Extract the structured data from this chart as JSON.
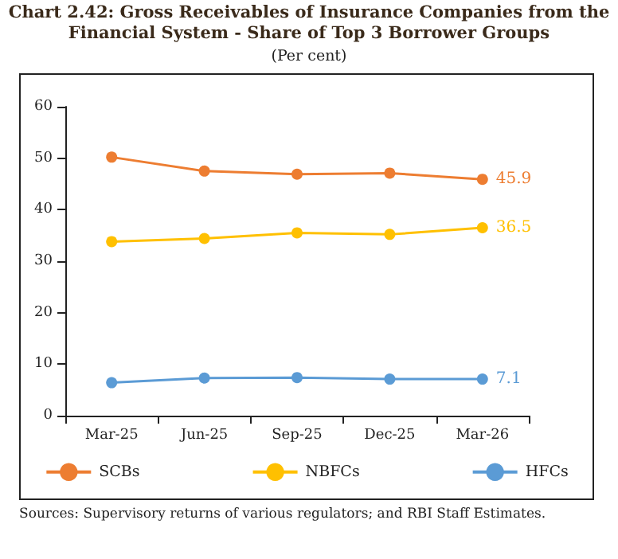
{
  "chart_data": {
    "type": "line",
    "title": "Chart 2.42: Gross Receivables of Insurance Companies from the Financial System - Share of Top 3 Borrower Groups",
    "subtitle": "(Per cent)",
    "categories": [
      "Mar-25",
      "Jun-25",
      "Sep-25",
      "Dec-25",
      "Mar-26"
    ],
    "series": [
      {
        "name": "SCBs",
        "color": "#ed7d31",
        "values": [
          50.2,
          47.5,
          46.9,
          47.1,
          45.9
        ],
        "value_labels": [
          null,
          null,
          null,
          null,
          "45.9"
        ]
      },
      {
        "name": "NBFCs",
        "color": "#ffc000",
        "values": [
          33.8,
          34.4,
          35.5,
          35.2,
          36.5
        ],
        "value_labels": [
          null,
          null,
          null,
          null,
          "36.5"
        ]
      },
      {
        "name": "HFCs",
        "color": "#5b9bd5",
        "values": [
          6.4,
          7.3,
          7.4,
          7.1,
          7.1
        ],
        "value_labels": [
          null,
          null,
          null,
          null,
          "7.1"
        ]
      }
    ],
    "ylim": [
      0,
      60
    ],
    "yticks": [
      0,
      10,
      20,
      30,
      40,
      50,
      60
    ],
    "grid": false,
    "legend": "bottom",
    "marker": "circle",
    "line_style": "solid",
    "annotations": [
      "Sources: Supervisory returns of various regulators; and RBI Staff Estimates."
    ]
  }
}
